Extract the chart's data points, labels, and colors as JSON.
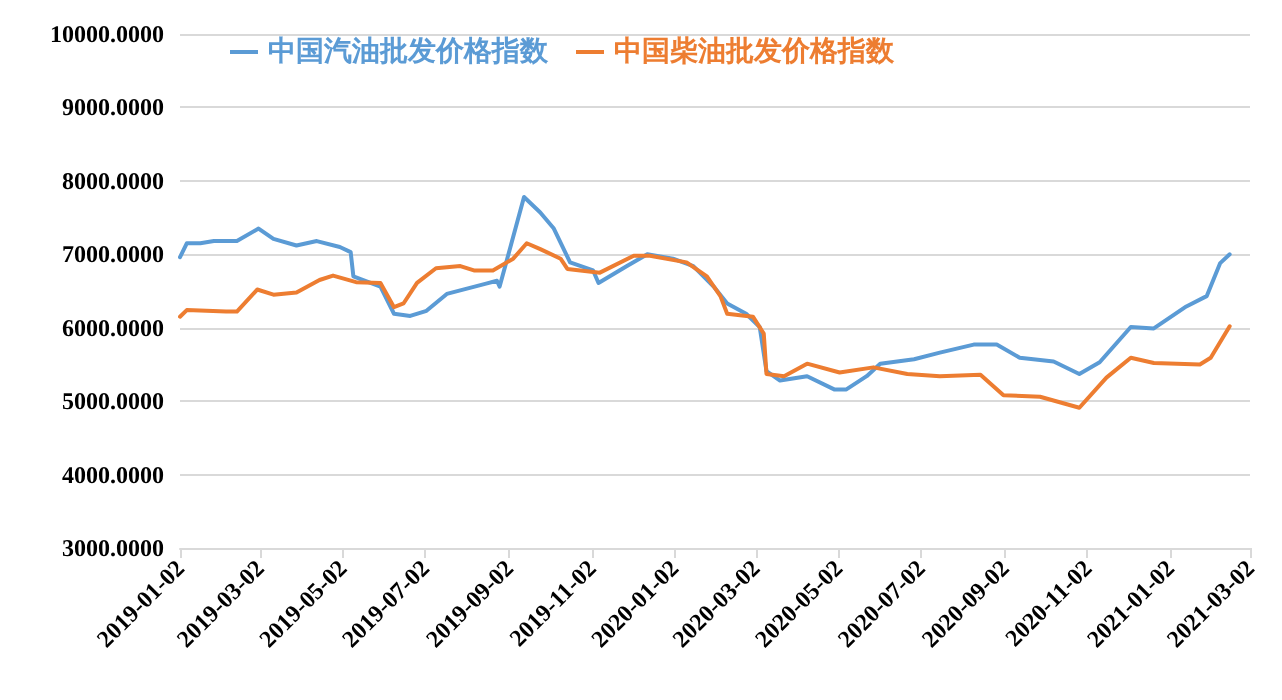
{
  "chart_data": {
    "type": "line",
    "xlim": [
      "2019-01-02",
      "2021-03-02"
    ],
    "xticks": [
      "2019-01-02",
      "2019-03-02",
      "2019-05-02",
      "2019-07-02",
      "2019-09-02",
      "2019-11-02",
      "2020-01-02",
      "2020-03-02",
      "2020-05-02",
      "2020-07-02",
      "2020-09-02",
      "2020-11-02",
      "2021-01-02",
      "2021-03-02"
    ],
    "ylim": [
      3000,
      10000
    ],
    "yticks": [
      {
        "value": 3000,
        "label": "3000.0000"
      },
      {
        "value": 4000,
        "label": "4000.0000"
      },
      {
        "value": 5000,
        "label": "5000.0000"
      },
      {
        "value": 6000,
        "label": "6000.0000"
      },
      {
        "value": 7000,
        "label": "7000.0000"
      },
      {
        "value": 8000,
        "label": "8000.0000"
      },
      {
        "value": 9000,
        "label": "9000.0000"
      },
      {
        "value": 10000,
        "label": "10000.0000"
      }
    ],
    "grid": "y",
    "legend": "top",
    "series": [
      {
        "name": "中国汽油批发价格指数",
        "color": "#5b9bd5",
        "x": [
          "2019-01-02",
          "2019-01-07",
          "2019-01-17",
          "2019-01-27",
          "2019-02-13",
          "2019-03-01",
          "2019-03-12",
          "2019-03-29",
          "2019-04-13",
          "2019-04-30",
          "2019-05-08",
          "2019-05-10",
          "2019-05-30",
          "2019-06-09",
          "2019-06-21",
          "2019-07-03",
          "2019-07-18",
          "2019-08-16",
          "2019-08-24",
          "2019-08-26",
          "2019-09-13",
          "2019-09-25",
          "2019-10-05",
          "2019-10-17",
          "2019-11-03",
          "2019-11-07",
          "2019-11-28",
          "2019-12-13",
          "2020-01-01",
          "2020-01-16",
          "2020-01-31",
          "2020-02-10",
          "2020-02-24",
          "2020-03-05",
          "2020-03-10",
          "2020-03-20",
          "2020-04-09",
          "2020-04-29",
          "2020-05-08",
          "2020-05-23",
          "2020-06-02",
          "2020-06-27",
          "2020-07-16",
          "2020-08-10",
          "2020-08-27",
          "2020-09-13",
          "2020-10-08",
          "2020-10-27",
          "2020-11-11",
          "2020-12-04",
          "2020-12-21",
          "2021-01-14",
          "2021-01-29",
          "2021-02-08",
          "2021-02-15"
        ],
        "values": [
          6960,
          7150,
          7150,
          7180,
          7180,
          7350,
          7210,
          7120,
          7180,
          7100,
          7030,
          6700,
          6560,
          6190,
          6160,
          6230,
          6460,
          6600,
          6640,
          6560,
          7780,
          7570,
          7350,
          6890,
          6780,
          6610,
          6840,
          7000,
          6940,
          6840,
          6560,
          6330,
          6190,
          6010,
          5410,
          5280,
          5340,
          5160,
          5160,
          5340,
          5510,
          5570,
          5660,
          5770,
          5770,
          5590,
          5540,
          5370,
          5530,
          6010,
          5990,
          6290,
          6430,
          6880,
          7000
        ]
      },
      {
        "name": "中国柴油批发价格指数",
        "color": "#ed7d31",
        "x": [
          "2019-01-02",
          "2019-01-07",
          "2019-02-05",
          "2019-02-13",
          "2019-02-28",
          "2019-03-12",
          "2019-03-29",
          "2019-04-15",
          "2019-04-25",
          "2019-05-12",
          "2019-05-30",
          "2019-06-09",
          "2019-06-16",
          "2019-06-26",
          "2019-07-10",
          "2019-07-28",
          "2019-08-07",
          "2019-08-21",
          "2019-09-05",
          "2019-09-15",
          "2019-09-25",
          "2019-10-10",
          "2019-10-15",
          "2019-11-08",
          "2019-12-03",
          "2019-12-15",
          "2020-01-11",
          "2020-01-26",
          "2020-02-05",
          "2020-02-10",
          "2020-02-29",
          "2020-03-08",
          "2020-03-10",
          "2020-03-23",
          "2020-04-09",
          "2020-05-03",
          "2020-05-28",
          "2020-06-22",
          "2020-07-16",
          "2020-08-15",
          "2020-09-01",
          "2020-09-28",
          "2020-10-27",
          "2020-11-16",
          "2020-12-04",
          "2020-12-21",
          "2021-01-24",
          "2021-02-01",
          "2021-02-15"
        ],
        "values": [
          6150,
          6240,
          6220,
          6220,
          6520,
          6450,
          6480,
          6650,
          6710,
          6620,
          6610,
          6280,
          6330,
          6610,
          6810,
          6840,
          6780,
          6780,
          6940,
          7150,
          7070,
          6940,
          6800,
          6750,
          6980,
          6980,
          6890,
          6700,
          6430,
          6190,
          6150,
          5920,
          5370,
          5340,
          5510,
          5390,
          5460,
          5370,
          5340,
          5360,
          5080,
          5060,
          4910,
          5320,
          5590,
          5520,
          5500,
          5590,
          6020
        ]
      }
    ]
  }
}
